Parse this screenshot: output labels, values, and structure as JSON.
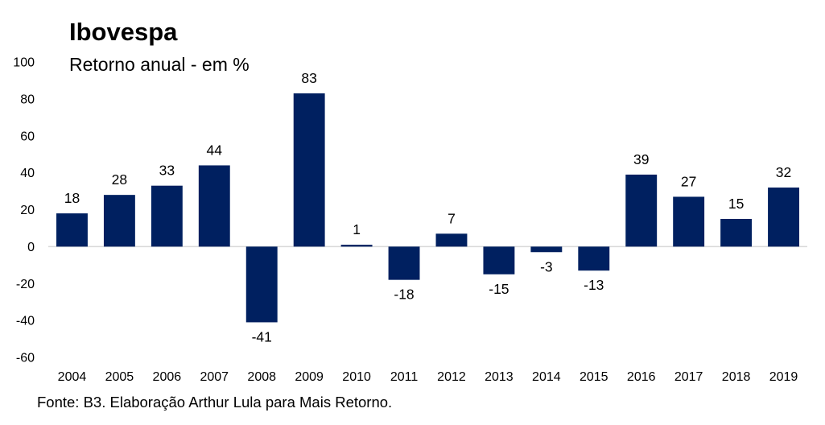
{
  "chart_data": {
    "type": "bar",
    "title": "Ibovespa",
    "subtitle": "Retorno anual - em %",
    "source": "Fonte: B3. Elaboração Arthur Lula para Mais Retorno.",
    "categories": [
      "2004",
      "2005",
      "2006",
      "2007",
      "2008",
      "2009",
      "2010",
      "2011",
      "2012",
      "2013",
      "2014",
      "2015",
      "2016",
      "2017",
      "2018",
      "2019"
    ],
    "values": [
      18,
      28,
      33,
      44,
      -41,
      83,
      1,
      -18,
      7,
      -15,
      -3,
      -13,
      39,
      27,
      15,
      32
    ],
    "data_labels": [
      "18",
      "28",
      "33",
      "44",
      "-41",
      "83",
      "1",
      "-18",
      "7",
      "-15",
      "-3",
      "-13",
      "39",
      "27",
      "15",
      "32"
    ],
    "ylim": [
      -60,
      100
    ],
    "yticks": [
      100,
      80,
      60,
      40,
      20,
      0,
      -20,
      -40,
      -60
    ],
    "ytick_labels": [
      "100",
      "80",
      "60",
      "40",
      "20",
      "0",
      "-20",
      "-40",
      "-60"
    ],
    "bar_color": "#002060",
    "axis_color": "#d9d9d9",
    "grid": false,
    "legend": "none"
  }
}
